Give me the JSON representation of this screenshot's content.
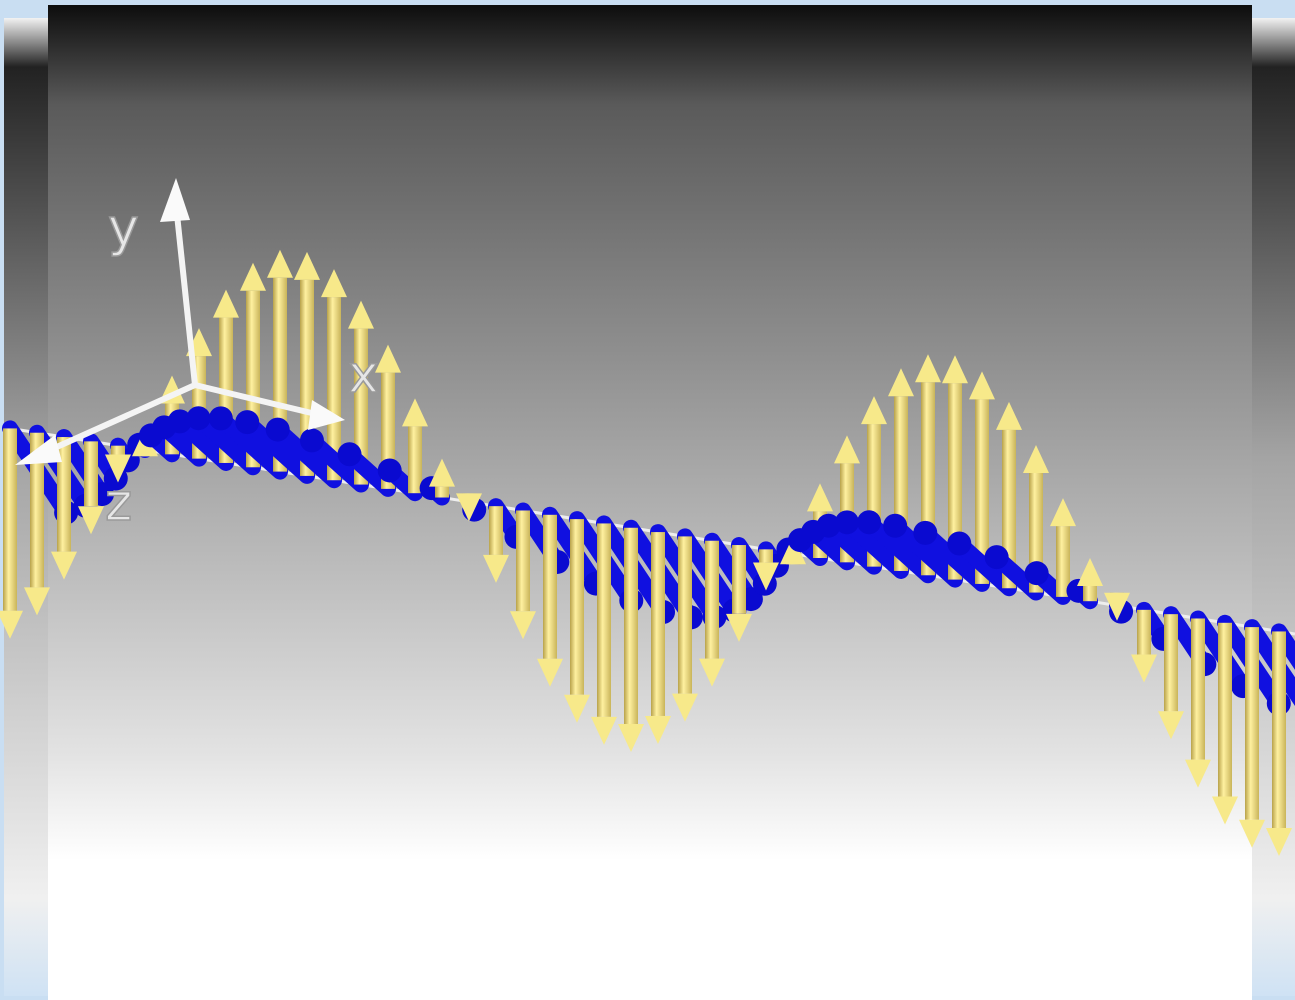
{
  "axis_labels": {
    "y": "y",
    "x": "x",
    "z": "z"
  }
}
